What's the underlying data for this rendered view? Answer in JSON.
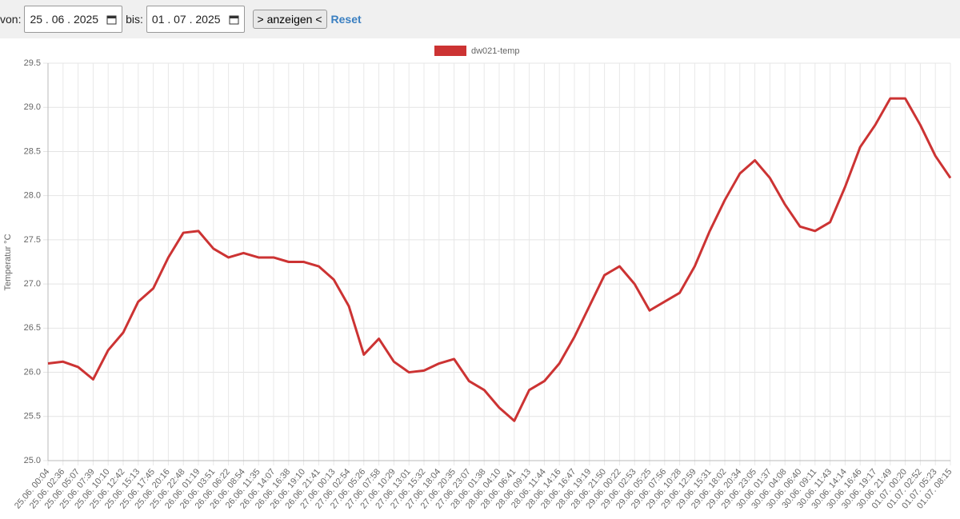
{
  "form": {
    "from_label": "von:",
    "from_date": "25 . 06 . 2025",
    "to_label": "bis:",
    "to_date": "01 . 07 . 2025",
    "submit": "> anzeigen <",
    "reset": "Reset"
  },
  "chart_data": {
    "type": "line",
    "ylabel": "Temperatur °C",
    "categories": [
      "25.06. 00:04",
      "25.06. 02:36",
      "25.06. 05:07",
      "25.06. 07:39",
      "25.06. 10:10",
      "25.06. 12:42",
      "25.06. 15:13",
      "25.06. 17:45",
      "25.06. 20:16",
      "25.06. 22:48",
      "26.06. 01:19",
      "26.06. 03:51",
      "26.06. 06:22",
      "26.06. 08:54",
      "26.06. 11:35",
      "26.06. 14:07",
      "26.06. 16:38",
      "26.06. 19:10",
      "26.06. 21:41",
      "27.06. 00:13",
      "27.06. 02:54",
      "27.06. 05:26",
      "27.06. 07:58",
      "27.06. 10:29",
      "27.06. 13:01",
      "27.06. 15:32",
      "27.06. 18:04",
      "27.06. 20:35",
      "27.06. 23:07",
      "28.06. 01:38",
      "28.06. 04:10",
      "28.06. 06:41",
      "28.06. 09:13",
      "28.06. 11:44",
      "28.06. 14:16",
      "28.06. 16:47",
      "28.06. 19:19",
      "28.06. 21:50",
      "29.06. 00:22",
      "29.06. 02:53",
      "29.06. 05:25",
      "29.06. 07:56",
      "29.06. 10:28",
      "29.06. 12:59",
      "29.06. 15:31",
      "29.06. 18:02",
      "29.06. 20:34",
      "29.06. 23:05",
      "30.06. 01:37",
      "30.06. 04:08",
      "30.06. 06:40",
      "30.06. 09:11",
      "30.06. 11:43",
      "30.06. 14:14",
      "30.06. 16:46",
      "30.06. 19:17",
      "30.06. 21:49",
      "01.07. 00:20",
      "01.07. 02:52",
      "01.07. 05:23",
      "01.07. 08:15"
    ],
    "series": [
      {
        "name": "dw021-temp",
        "color": "#cc3333",
        "values": [
          26.1,
          26.12,
          26.06,
          25.92,
          26.25,
          26.45,
          26.8,
          26.95,
          27.3,
          27.58,
          27.6,
          27.4,
          27.3,
          27.35,
          27.3,
          27.3,
          27.25,
          27.25,
          27.2,
          27.05,
          26.75,
          26.2,
          26.38,
          26.12,
          26.0,
          26.02,
          26.1,
          26.15,
          25.9,
          25.8,
          25.6,
          25.45,
          25.8,
          25.9,
          26.1,
          26.4,
          26.75,
          27.1,
          27.2,
          27.0,
          26.7,
          26.8,
          26.9,
          27.2,
          27.6,
          27.95,
          28.25,
          28.4,
          28.2,
          27.9,
          27.65,
          27.6,
          27.7,
          28.1,
          28.55,
          28.8,
          29.1,
          29.1,
          28.8,
          28.45,
          28.2
        ]
      }
    ],
    "ylim": [
      25,
      29.5
    ],
    "yticks": [
      {
        "value": 25,
        "label": "25.0"
      },
      25.5,
      {
        "value": 26,
        "label": "26.0"
      },
      26.5,
      {
        "value": 27,
        "label": "27.0"
      },
      27.5,
      {
        "value": 28,
        "label": "28.0"
      },
      28.5,
      {
        "value": 29,
        "label": "29.0"
      },
      29.5
    ],
    "grid": true,
    "legend": "top"
  }
}
